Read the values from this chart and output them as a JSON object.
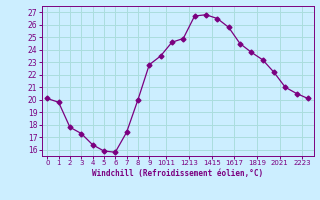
{
  "x": [
    0,
    1,
    2,
    3,
    4,
    5,
    6,
    7,
    8,
    9,
    10,
    11,
    12,
    13,
    14,
    15,
    16,
    17,
    18,
    19,
    20,
    21,
    22,
    23
  ],
  "y": [
    20.1,
    19.8,
    17.8,
    17.3,
    16.4,
    15.9,
    15.8,
    17.4,
    20.0,
    22.8,
    23.5,
    24.6,
    24.9,
    26.7,
    26.8,
    26.5,
    25.8,
    24.5,
    23.8,
    23.2,
    22.2,
    21.0,
    20.5,
    20.1
  ],
  "line_color": "#7b0080",
  "marker": "D",
  "marker_size": 2.5,
  "bg_color": "#cceeff",
  "grid_color": "#aadddd",
  "xlabel": "Windchill (Refroidissement éolien,°C)",
  "xlabel_color": "#7b0080",
  "tick_color": "#7b0080",
  "ylim": [
    15.5,
    27.5
  ],
  "xlim": [
    -0.5,
    23.5
  ],
  "yticks": [
    16,
    17,
    18,
    19,
    20,
    21,
    22,
    23,
    24,
    25,
    26,
    27
  ],
  "xtick_positions": [
    0,
    1,
    2,
    3,
    4,
    5,
    6,
    7,
    8,
    9,
    10.5,
    12.5,
    14.5,
    16.5,
    18.5,
    20.5,
    22.5
  ],
  "xtick_labels": [
    "0",
    "1",
    "2",
    "3",
    "4",
    "5",
    "6",
    "7",
    "8",
    "9",
    "1011",
    "1213",
    "1415",
    "1617",
    "1819",
    "2021",
    "2223"
  ]
}
